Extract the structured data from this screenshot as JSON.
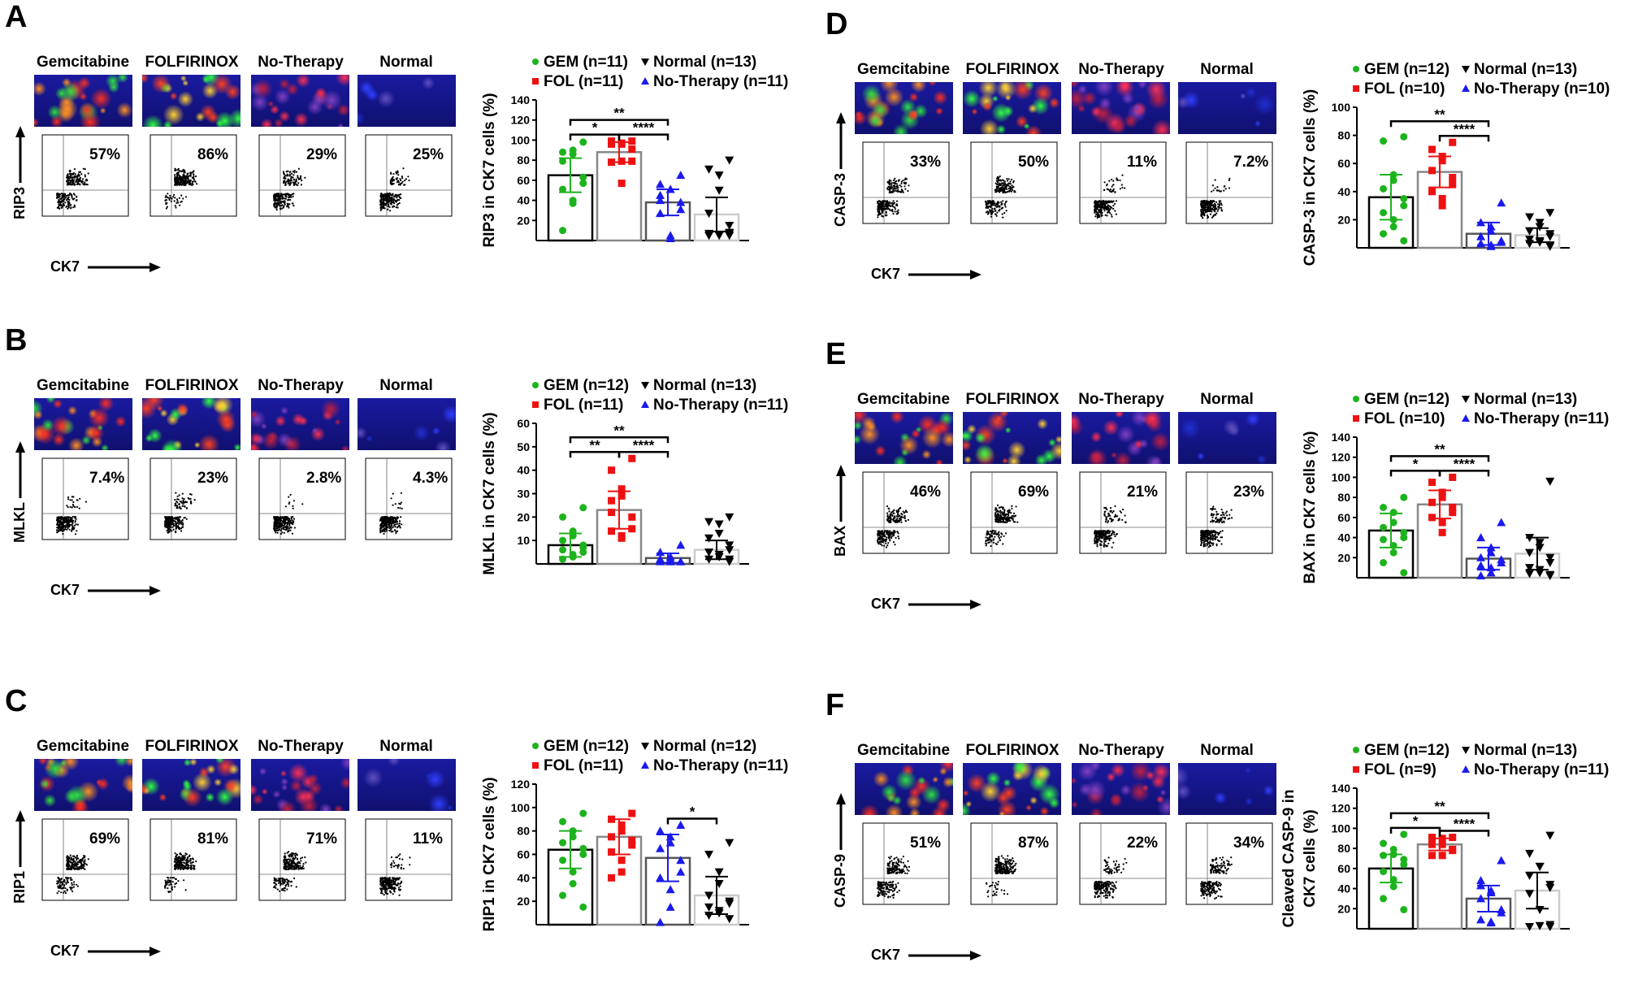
{
  "columns": [
    "Gemcitabine",
    "FOLFIRINOX",
    "No-Therapy",
    "Normal"
  ],
  "x_axis_marker": "CK7",
  "colors": {
    "GEM": "#1db31d",
    "FOL": "#ee1111",
    "No-Therapy": "#1a1aee",
    "Normal": "#000000"
  },
  "panels": [
    {
      "letter": "A",
      "marker": "RIP3",
      "flow_percent": [
        "57%",
        "86%",
        "29%",
        "25%"
      ]
    },
    {
      "letter": "B",
      "marker": "MLKL",
      "flow_percent": [
        "7.4%",
        "23%",
        "2.8%",
        "4.3%"
      ]
    },
    {
      "letter": "C",
      "marker": "RIP1",
      "flow_percent": [
        "69%",
        "81%",
        "71%",
        "11%"
      ]
    },
    {
      "letter": "D",
      "marker": "CASP-3",
      "flow_percent": [
        "33%",
        "50%",
        "11%",
        "7.2%"
      ]
    },
    {
      "letter": "E",
      "marker": "BAX",
      "flow_percent": [
        "46%",
        "69%",
        "21%",
        "23%"
      ]
    },
    {
      "letter": "F",
      "marker": "CASP-9",
      "flow_percent": [
        "51%",
        "87%",
        "22%",
        "34%"
      ]
    }
  ],
  "chart_data": [
    {
      "type": "bar",
      "ylabel": "RIP3 in CK7 cells (%)",
      "ylim": [
        0,
        140
      ],
      "yticks": [
        20,
        40,
        60,
        80,
        100,
        120,
        140
      ],
      "legend": [
        "GEM (n=11)",
        "FOL (n=11)",
        "Normal (n=13)",
        "No-Therapy (n=11)"
      ],
      "series": [
        {
          "name": "GEM",
          "mean": 65,
          "sd": 17,
          "points": [
            98,
            88,
            86,
            90,
            79,
            63,
            57,
            51,
            40,
            37,
            10
          ]
        },
        {
          "name": "FOL",
          "mean": 88,
          "sd": 10,
          "points": [
            99,
            97,
            96,
            97,
            99,
            91,
            79,
            78,
            79,
            57,
            96
          ]
        },
        {
          "name": "No-Therapy",
          "mean": 38,
          "sd": 13,
          "points": [
            65,
            56,
            51,
            51,
            45,
            38,
            31,
            27,
            5,
            2,
            40
          ]
        },
        {
          "name": "Normal",
          "mean": 26,
          "sd": 17,
          "points": [
            80,
            71,
            65,
            50,
            27,
            15,
            8,
            7,
            6,
            5,
            5,
            5,
            7
          ]
        }
      ],
      "significance": [
        {
          "from": "GEM",
          "to": "FOL",
          "label": "*"
        },
        {
          "from": "FOL",
          "to": "No-Therapy",
          "label": "****"
        },
        {
          "from": "GEM",
          "to": "No-Therapy",
          "label": "**"
        }
      ]
    },
    {
      "type": "bar",
      "ylabel": "MLKL in CK7 cells (%)",
      "ylim": [
        0,
        60
      ],
      "yticks": [
        10,
        20,
        30,
        40,
        50,
        60
      ],
      "legend": [
        "GEM (n=12)",
        "FOL (n=11)",
        "Normal (n=13)",
        "No-Therapy (n=11)"
      ],
      "series": [
        {
          "name": "GEM",
          "mean": 8,
          "sd": 5,
          "points": [
            24,
            20,
            14,
            12,
            10,
            8,
            7,
            6,
            4,
            3,
            2,
            5
          ]
        },
        {
          "name": "FOL",
          "mean": 23,
          "sd": 8,
          "points": [
            45,
            40,
            32,
            29,
            22,
            20,
            15,
            14,
            12,
            11,
            27
          ]
        },
        {
          "name": "No-Therapy",
          "mean": 2.5,
          "sd": 2,
          "points": [
            8,
            5,
            3,
            2,
            2,
            1,
            1,
            1,
            1,
            1,
            2
          ]
        },
        {
          "name": "Normal",
          "mean": 6,
          "sd": 4,
          "points": [
            20,
            18,
            17,
            13,
            11,
            8,
            6,
            5,
            4,
            3,
            2,
            2,
            1
          ]
        }
      ],
      "significance": [
        {
          "from": "GEM",
          "to": "FOL",
          "label": "**"
        },
        {
          "from": "FOL",
          "to": "No-Therapy",
          "label": "****"
        },
        {
          "from": "GEM",
          "to": "No-Therapy",
          "label": "**"
        }
      ]
    },
    {
      "type": "bar",
      "ylabel": "RIP1 in CK7 cells (%)",
      "ylim": [
        0,
        120
      ],
      "yticks": [
        20,
        40,
        60,
        80,
        100,
        120
      ],
      "legend": [
        "GEM (n=12)",
        "FOL (n=11)",
        "Normal (n=12)",
        "No-Therapy (n=11)"
      ],
      "series": [
        {
          "name": "GEM",
          "mean": 64,
          "sd": 16,
          "points": [
            95,
            88,
            80,
            75,
            70,
            65,
            60,
            55,
            45,
            35,
            25,
            15
          ]
        },
        {
          "name": "FOL",
          "mean": 75,
          "sd": 15,
          "points": [
            95,
            90,
            85,
            80,
            75,
            72,
            68,
            62,
            55,
            45,
            40
          ]
        },
        {
          "name": "No-Therapy",
          "mean": 57,
          "sd": 20,
          "points": [
            85,
            80,
            75,
            70,
            65,
            55,
            45,
            40,
            30,
            15,
            2
          ]
        },
        {
          "name": "Normal",
          "mean": 25,
          "sd": 16,
          "points": [
            70,
            60,
            45,
            35,
            25,
            20,
            18,
            15,
            12,
            10,
            8,
            5
          ]
        }
      ],
      "significance": [
        {
          "from": "No-Therapy",
          "to": "Normal",
          "label": "*"
        }
      ]
    },
    {
      "type": "bar",
      "ylabel": "CASP-3 in CK7 cells (%)",
      "ylim": [
        0,
        100
      ],
      "yticks": [
        20,
        40,
        60,
        80,
        100
      ],
      "legend": [
        "GEM (n=12)",
        "FOL (n=10)",
        "Normal (n=13)",
        "No-Therapy (n=10)"
      ],
      "series": [
        {
          "name": "GEM",
          "mean": 36,
          "sd": 16,
          "points": [
            79,
            76,
            52,
            48,
            42,
            35,
            30,
            25,
            20,
            15,
            10,
            5
          ]
        },
        {
          "name": "FOL",
          "mean": 54,
          "sd": 11,
          "points": [
            75,
            70,
            65,
            62,
            55,
            50,
            45,
            40,
            35,
            30
          ]
        },
        {
          "name": "No-Therapy",
          "mean": 10,
          "sd": 8,
          "points": [
            32,
            18,
            15,
            12,
            8,
            5,
            4,
            3,
            2,
            1
          ]
        },
        {
          "name": "Normal",
          "mean": 9,
          "sd": 5,
          "points": [
            25,
            22,
            18,
            15,
            12,
            10,
            8,
            6,
            5,
            4,
            3,
            2,
            1
          ]
        }
      ],
      "significance": [
        {
          "from": "FOL",
          "to": "No-Therapy",
          "label": "****"
        },
        {
          "from": "GEM",
          "to": "No-Therapy",
          "label": "**"
        }
      ]
    },
    {
      "type": "bar",
      "ylabel": "BAX in CK7 cells (%)",
      "ylim": [
        0,
        140
      ],
      "yticks": [
        20,
        40,
        60,
        80,
        100,
        120,
        140
      ],
      "legend": [
        "GEM (n=12)",
        "FOL (n=10)",
        "Normal (n=13)",
        "No-Therapy (n=11)"
      ],
      "series": [
        {
          "name": "GEM",
          "mean": 47,
          "sd": 17,
          "points": [
            80,
            70,
            65,
            55,
            50,
            45,
            40,
            38,
            32,
            25,
            15,
            5
          ]
        },
        {
          "name": "FOL",
          "mean": 73,
          "sd": 14,
          "points": [
            100,
            95,
            85,
            80,
            75,
            70,
            65,
            60,
            55,
            45
          ]
        },
        {
          "name": "No-Therapy",
          "mean": 19,
          "sd": 11,
          "points": [
            55,
            40,
            30,
            25,
            20,
            18,
            15,
            12,
            10,
            5,
            2
          ]
        },
        {
          "name": "Normal",
          "mean": 24,
          "sd": 16,
          "points": [
            96,
            40,
            35,
            30,
            25,
            20,
            15,
            10,
            8,
            5,
            4,
            3,
            2
          ]
        }
      ],
      "significance": [
        {
          "from": "GEM",
          "to": "FOL",
          "label": "*"
        },
        {
          "from": "FOL",
          "to": "No-Therapy",
          "label": "****"
        },
        {
          "from": "GEM",
          "to": "No-Therapy",
          "label": "**"
        }
      ]
    },
    {
      "type": "bar",
      "ylabel": [
        "Cleaved CASP-9 in",
        "CK7 cells (%)"
      ],
      "ylim": [
        0,
        140
      ],
      "yticks": [
        20,
        40,
        60,
        80,
        100,
        120,
        140
      ],
      "legend": [
        "GEM (n=12)",
        "FOL (n=9)",
        "Normal (n=13)",
        "No-Therapy (n=11)"
      ],
      "series": [
        {
          "name": "GEM",
          "mean": 60,
          "sd": 14,
          "points": [
            94,
            85,
            79,
            74,
            73,
            69,
            64,
            57,
            49,
            42,
            30,
            19
          ]
        },
        {
          "name": "FOL",
          "mean": 84,
          "sd": 6,
          "points": [
            91,
            91,
            90,
            84,
            84,
            79,
            78,
            73,
            73
          ]
        },
        {
          "name": "No-Therapy",
          "mean": 30,
          "sd": 13,
          "points": [
            68,
            48,
            38,
            36,
            30,
            19,
            16,
            9,
            7,
            6,
            43
          ]
        },
        {
          "name": "Normal",
          "mean": 38,
          "sd": 18,
          "points": [
            93,
            75,
            62,
            62,
            53,
            44,
            41,
            35,
            19,
            3,
            2,
            2,
            4
          ]
        }
      ],
      "significance": [
        {
          "from": "GEM",
          "to": "FOL",
          "label": "*"
        },
        {
          "from": "GEM",
          "to": "No-Therapy",
          "label": "**"
        },
        {
          "from": "FOL",
          "to": "No-Therapy",
          "label": "****"
        }
      ]
    }
  ]
}
